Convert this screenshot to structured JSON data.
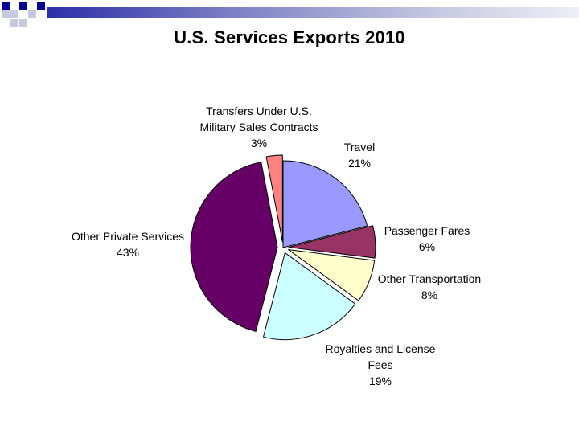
{
  "slide": {
    "title": "U.S. Services Exports 2010"
  },
  "colors": {
    "header_dark": "#000099",
    "header_light": "#c7c9de"
  },
  "chart_data": {
    "type": "pie",
    "title": "U.S. Services Exports 2010",
    "slices": [
      {
        "name": "Travel",
        "label_lines": [
          "Travel"
        ],
        "value": 21,
        "value_label": "21%",
        "color": "#9999ff",
        "exploded": false
      },
      {
        "name": "Passenger Fares",
        "label_lines": [
          "Passenger Fares"
        ],
        "value": 6,
        "value_label": "6%",
        "color": "#993366",
        "exploded": true
      },
      {
        "name": "Other Transportation",
        "label_lines": [
          "Other Transportation"
        ],
        "value": 8,
        "value_label": "8%",
        "color": "#ffffcc",
        "exploded": true
      },
      {
        "name": "Royalties and License Fees",
        "label_lines": [
          "Royalties and License",
          "Fees"
        ],
        "value": 19,
        "value_label": "19%",
        "color": "#ccffff",
        "exploded": true
      },
      {
        "name": "Other Private Services",
        "label_lines": [
          "Other Private Services"
        ],
        "value": 43,
        "value_label": "43%",
        "color": "#660066",
        "exploded": true
      },
      {
        "name": "Transfers Under U.S. Military Sales Contracts",
        "label_lines": [
          "Transfers Under U.S.",
          "Military Sales Contracts"
        ],
        "value": 3,
        "value_label": "3%",
        "color": "#ff8080",
        "exploded": true
      }
    ]
  }
}
